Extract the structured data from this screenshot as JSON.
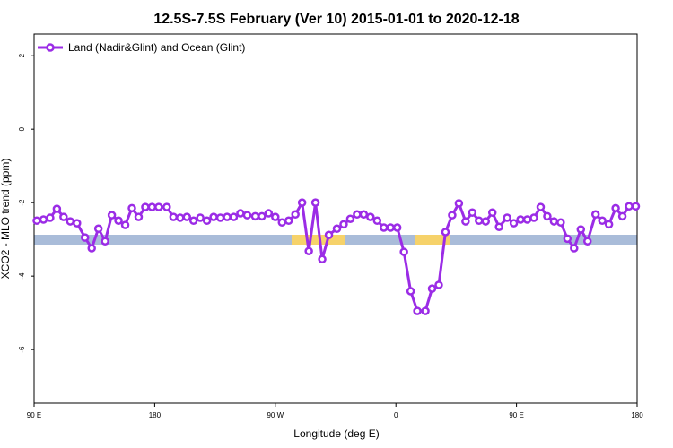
{
  "chart_data": {
    "type": "line",
    "title": "12.5S-7.5S February (Ver 10)   2015-01-01 to 2020-12-18",
    "x_label": "Longitude (deg E)",
    "y_label": "XCO2 - MLO trend (ppm)",
    "x": [
      92,
      97,
      102,
      107,
      112,
      117,
      122,
      128,
      133,
      138,
      143,
      148,
      153,
      158,
      163,
      168,
      173,
      178,
      183,
      189,
      194,
      199,
      204,
      209,
      214,
      219,
      224,
      229,
      234,
      239,
      244,
      249,
      255,
      260,
      265,
      270,
      275,
      280,
      285,
      290,
      295,
      300,
      305,
      310,
      316,
      321,
      326,
      331,
      336,
      341,
      346,
      351,
      356,
      361,
      366,
      371,
      376,
      382,
      387,
      392,
      397,
      402,
      407,
      412,
      417,
      422,
      427,
      432,
      437,
      443,
      448,
      453,
      458,
      463,
      468,
      473,
      478,
      483,
      488,
      493,
      498,
      503,
      509,
      514,
      519,
      524,
      529,
      534,
      539
    ],
    "series": [
      {
        "name": "Land (Nadir&Glint) and Ocean (Glint)",
        "color": "#9b2ce6",
        "values": [
          -2.49,
          -2.46,
          -2.41,
          -2.17,
          -2.39,
          -2.51,
          -2.56,
          -2.95,
          -3.24,
          -2.71,
          -3.05,
          -2.34,
          -2.49,
          -2.61,
          -2.15,
          -2.39,
          -2.12,
          -2.12,
          -2.12,
          -2.12,
          -2.39,
          -2.41,
          -2.39,
          -2.49,
          -2.41,
          -2.49,
          -2.39,
          -2.41,
          -2.39,
          -2.39,
          -2.29,
          -2.34,
          -2.37,
          -2.37,
          -2.29,
          -2.39,
          -2.54,
          -2.49,
          -2.32,
          -2.0,
          -3.32,
          -2.0,
          -3.54,
          -2.88,
          -2.71,
          -2.59,
          -2.44,
          -2.32,
          -2.32,
          -2.39,
          -2.49,
          -2.68,
          -2.68,
          -2.68,
          -3.34,
          -4.41,
          -4.95,
          -4.95,
          -4.34,
          -4.24,
          -2.8,
          -2.34,
          -2.02,
          -2.51,
          -2.27,
          -2.49,
          -2.51,
          -2.27,
          -2.66,
          -2.41,
          -2.56,
          -2.46,
          -2.46,
          -2.41,
          -2.12,
          -2.37,
          -2.51,
          -2.54,
          -2.98,
          -3.24,
          -2.73,
          -3.05,
          -2.32,
          -2.49,
          -2.59,
          -2.15,
          -2.37,
          -2.1,
          -2.1
        ]
      }
    ],
    "xlim": [
      90,
      540
    ],
    "xticks": [
      {
        "value": 90,
        "label": "90 E"
      },
      180,
      {
        "value": 270,
        "label": "90 W"
      },
      {
        "value": 360,
        "label": "0"
      },
      {
        "value": 450,
        "label": "90 E"
      },
      {
        "value": 540,
        "label": "180"
      }
    ],
    "ylim": [
      -7.46,
      2.59
    ],
    "yticks": [
      -6,
      -4,
      -2,
      0,
      2
    ],
    "legend": "top-left"
  }
}
